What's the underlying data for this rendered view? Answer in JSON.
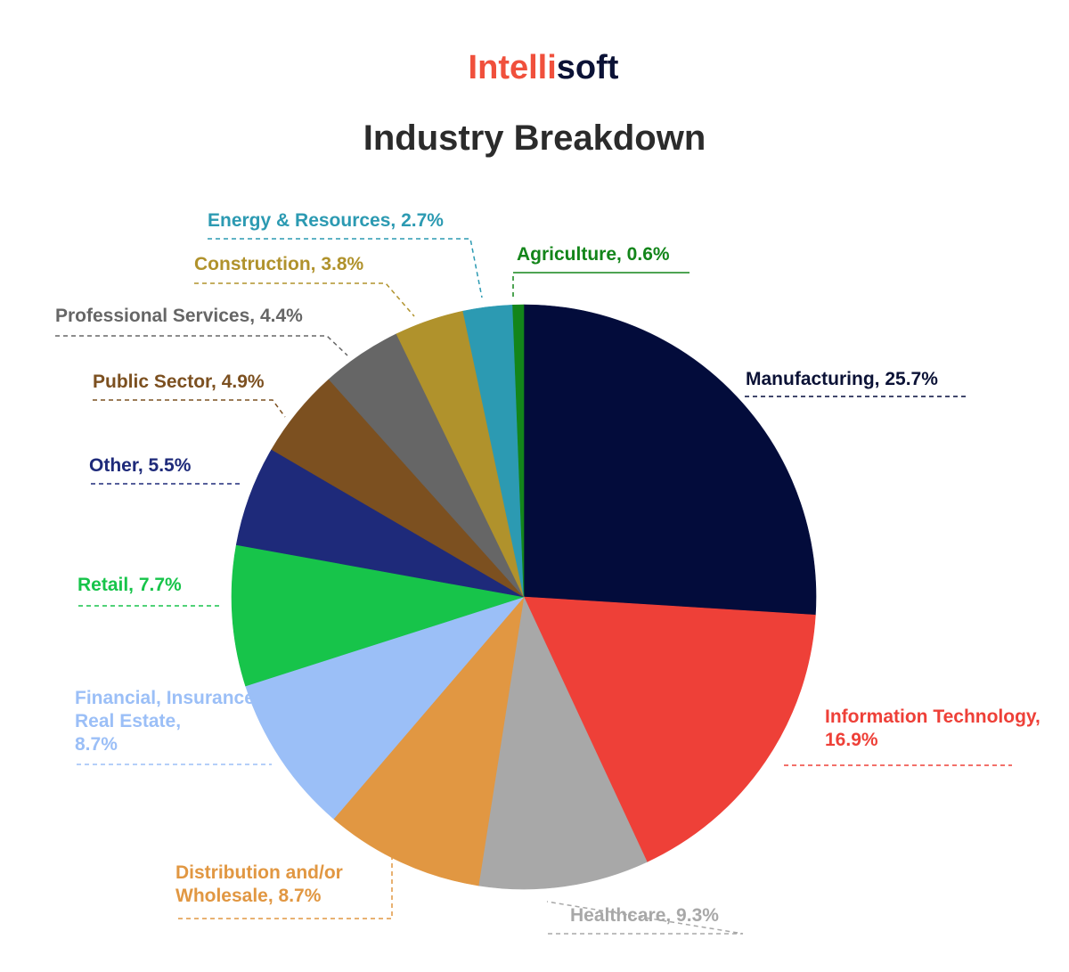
{
  "logo": {
    "part1": "Intelli",
    "part2": "soft",
    "color1": "#f0503c",
    "color2": "#0b1236"
  },
  "chart_data": {
    "type": "pie",
    "title": "Industry Breakdown",
    "slices": [
      {
        "label": "Manufacturing, 25.7%",
        "value": 25.7,
        "color": "#030c3b"
      },
      {
        "label": "Information Technology, 16.9%",
        "value": 16.9,
        "color": "#ee4038"
      },
      {
        "label": "Healthcare, 9.3%",
        "value": 9.3,
        "color": "#a8a8a8"
      },
      {
        "label": "Distribution and/or Wholesale, 8.7%",
        "value": 8.7,
        "color": "#e19742"
      },
      {
        "label": "Financial, Insurance, Real Estate, 8.7%",
        "value": 8.7,
        "color": "#9bbff7"
      },
      {
        "label": "Retail, 7.7%",
        "value": 7.7,
        "color": "#17c44a"
      },
      {
        "label": "Other, 5.5%",
        "value": 5.5,
        "color": "#1e2a7a"
      },
      {
        "label": "Public Sector, 4.9%",
        "value": 4.9,
        "color": "#7c5020"
      },
      {
        "label": "Professional Services, 4.4%",
        "value": 4.4,
        "color": "#666666"
      },
      {
        "label": "Construction, 3.8%",
        "value": 3.8,
        "color": "#b0922c"
      },
      {
        "label": "Energy & Resources, 2.7%",
        "value": 2.7,
        "color": "#2c9ab2"
      },
      {
        "label": "Agriculture, 0.6%",
        "value": 0.6,
        "color": "#13851a"
      }
    ]
  }
}
